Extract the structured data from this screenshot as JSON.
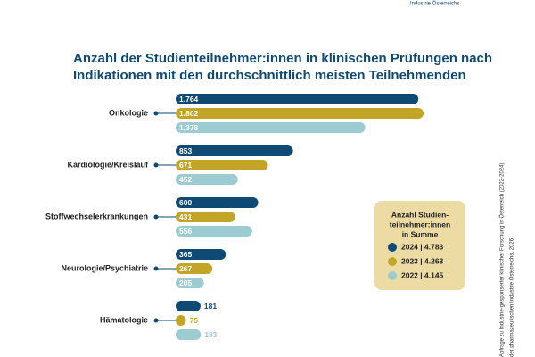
{
  "header": {
    "org": "Industrie Österreichs"
  },
  "source": [
    "Abfrage zu Industrie-gesponserter klinischer Forschung in Österreich (2022-2024)",
    "der pharmazeutischen Industrie Österreichs, 2026"
  ],
  "chart_data": {
    "type": "bar",
    "orientation": "horizontal",
    "title": [
      "Anzahl der Studienteilnehmer:innen in klinischen Prüfungen nach",
      "Indikationen mit den durchschnittlich meisten Teilnehmenden"
    ],
    "categories": [
      "Onkologie",
      "Kardiologie/Kreislauf",
      "Stoffwechselerkrankungen",
      "Neurologie/Psychiatrie",
      "Hämatologie"
    ],
    "series": [
      {
        "name": "2024 | 4.783",
        "color": "#0e4a73",
        "values": [
          1764,
          853,
          600,
          365,
          181
        ],
        "value_labels": [
          "1.764",
          "853",
          "600",
          "365",
          "181"
        ]
      },
      {
        "name": "2023 | 4.263",
        "color": "#c2a526",
        "values": [
          1802,
          671,
          431,
          267,
          75
        ],
        "value_labels": [
          "1.802",
          "671",
          "431",
          "267",
          "75"
        ]
      },
      {
        "name": "2022 | 4.145",
        "color": "#9ccbd1",
        "values": [
          1378,
          452,
          556,
          205,
          183
        ],
        "value_labels": [
          "1.378",
          "452",
          "556",
          "205",
          "183"
        ]
      }
    ],
    "legend_title": [
      "Anzahl Studien-",
      "teilnehmer:innen",
      "in Summe"
    ]
  }
}
